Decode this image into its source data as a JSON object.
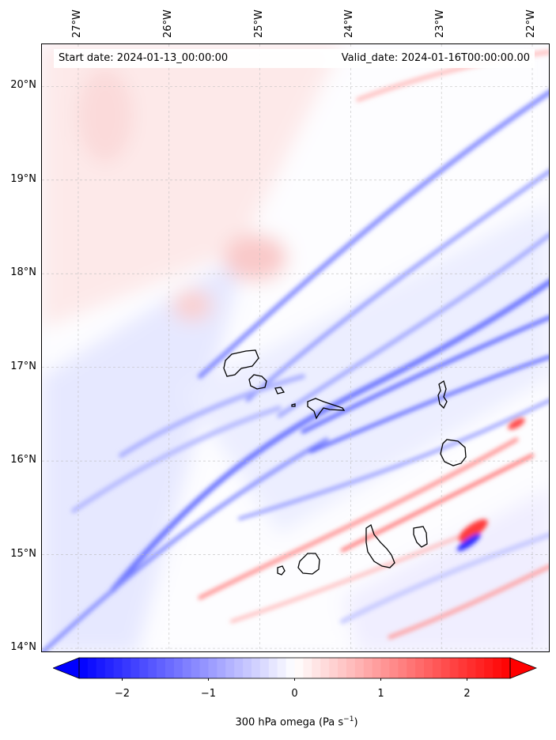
{
  "map": {
    "title_start": "Start date: 2024-01-13_00:00:00",
    "title_valid": "Valid_date: 2024-01-16T00:00:00.00",
    "lon_labels": [
      "27°W",
      "26°W",
      "25°W",
      "24°W",
      "23°W",
      "22°W"
    ],
    "lat_labels": [
      "20°N",
      "19°N",
      "18°N",
      "17°N",
      "16°N",
      "15°N",
      "14°N"
    ],
    "lon_range_deg_west": [
      27.4,
      21.8
    ],
    "lat_range_deg_north": [
      13.95,
      20.45
    ],
    "field": "300 hPa omega",
    "islands": [
      "Santo Antão",
      "São Vicente",
      "Santa Luzia",
      "São Nicolau",
      "Sal",
      "Boa Vista",
      "Maio",
      "Santiago",
      "Fogo",
      "Brava"
    ]
  },
  "colorbar": {
    "label_main": "300 hPa omega (Pa s",
    "label_sup": "−1",
    "label_end": ")",
    "ticks": [
      "−2",
      "−1",
      "0",
      "1",
      "2"
    ],
    "tick_values": [
      -2,
      -1,
      0,
      1,
      2
    ],
    "range": [
      -2.5,
      2.5
    ],
    "colors": {
      "min": "#0000ff",
      "mid": "#ffffff",
      "max": "#ff0000"
    }
  }
}
